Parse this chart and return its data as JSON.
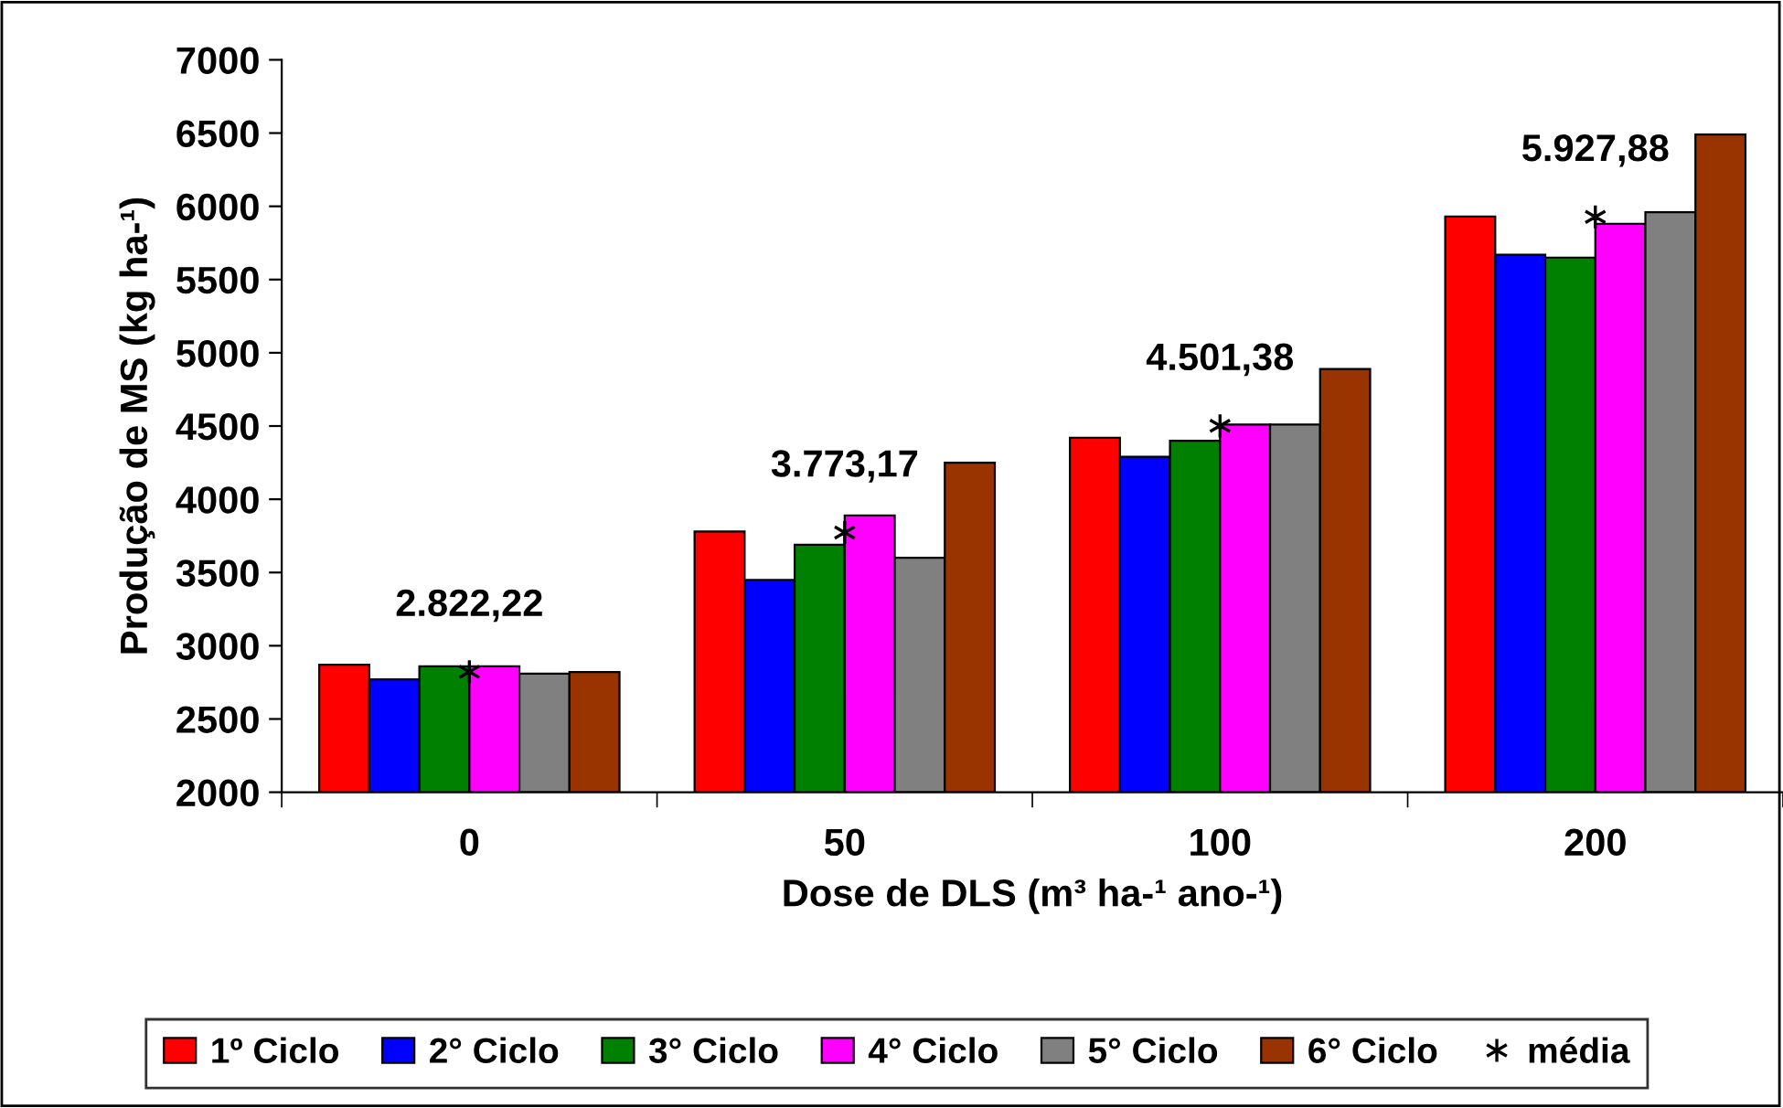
{
  "chart_data": {
    "type": "bar",
    "xlabel": "Dose de DLS (m³ ha-¹ ano-¹)",
    "ylabel": "Produção de MS (kg ha-¹)",
    "categories": [
      "0",
      "50",
      "100",
      "200"
    ],
    "series": [
      {
        "name": "1º Ciclo",
        "color": "#ff0000",
        "values": [
          2870,
          3780,
          4420,
          5930
        ]
      },
      {
        "name": "2° Ciclo",
        "color": "#0000ff",
        "values": [
          2770,
          3450,
          4290,
          5670
        ]
      },
      {
        "name": "3° Ciclo",
        "color": "#008000",
        "values": [
          2860,
          3690,
          4400,
          5650
        ]
      },
      {
        "name": "4° Ciclo",
        "color": "#ff00ff",
        "values": [
          2860,
          3890,
          4510,
          5880
        ]
      },
      {
        "name": "5° Ciclo",
        "color": "#808080",
        "values": [
          2810,
          3600,
          4510,
          5960
        ]
      },
      {
        "name": "6° Ciclo",
        "color": "#993300",
        "values": [
          2820,
          4250,
          4890,
          6490
        ]
      },
      {
        "name": "média",
        "type": "scatter",
        "marker": "cross",
        "color": "#000000",
        "x": [
          "0",
          "50",
          "100",
          "200"
        ],
        "values": [
          2822.22,
          3773.17,
          4501.38,
          5927.88
        ],
        "value_labels": [
          "2.822,22",
          "3.773,17",
          "4.501,38",
          "5.927,88"
        ]
      }
    ],
    "ylim": [
      2000,
      7000
    ],
    "yticks": [
      2000,
      2500,
      3000,
      3500,
      4000,
      4500,
      5000,
      5500,
      6000,
      6500,
      7000
    ],
    "grid": false,
    "legend": "bottom"
  }
}
